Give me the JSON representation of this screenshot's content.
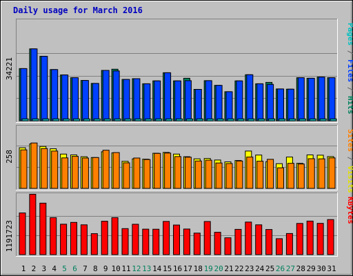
{
  "chart_data": {
    "type": "bar",
    "title": "Daily usage for March 2016",
    "categories": [
      "1",
      "2",
      "3",
      "4",
      "5",
      "6",
      "7",
      "8",
      "9",
      "10",
      "11",
      "12",
      "13",
      "14",
      "15",
      "16",
      "17",
      "18",
      "19",
      "20",
      "21",
      "22",
      "23",
      "24",
      "25",
      "26",
      "27",
      "28",
      "29",
      "30",
      "31"
    ],
    "weekend_days": [
      "5",
      "6",
      "12",
      "13",
      "19",
      "20",
      "26",
      "27"
    ],
    "panels": [
      {
        "id": "hits",
        "ytick_label": "34221",
        "ytick_value": 34221,
        "ylabel_parts": [
          {
            "text": "Pages",
            "color": "#00c0c0"
          },
          {
            "text": " / ",
            "color": "#606060"
          },
          {
            "text": "Files",
            "color": "#0040ff"
          },
          {
            "text": " / ",
            "color": "#606060"
          },
          {
            "text": "Hits",
            "color": "#00805c"
          }
        ],
        "series": [
          {
            "name": "Hits",
            "color": "#00805c",
            "values": [
              26400,
              36400,
              32600,
              25900,
              23200,
              21800,
              20400,
              18900,
              25500,
              26100,
              20900,
              21300,
              18700,
              20200,
              24300,
              20200,
              21500,
              15900,
              20300,
              17900,
              14700,
              20200,
              23300,
              18700,
              19400,
              16100,
              16000,
              21800,
              21500,
              22100,
              21800
            ]
          },
          {
            "name": "Files",
            "color": "#0040ff",
            "values": [
              26400,
              36400,
              32600,
              25900,
              23200,
              21800,
              20400,
              18900,
              25500,
              25200,
              20900,
              21300,
              18700,
              20200,
              24300,
              20200,
              20300,
              15900,
              20300,
              17900,
              14700,
              20200,
              23300,
              18700,
              18400,
              16100,
              16000,
              21800,
              21500,
              22100,
              21800
            ]
          },
          {
            "name": "Pages",
            "color": "#00c0c0",
            "values": [
              950,
              950,
              950,
              950,
              950,
              950,
              950,
              950,
              950,
              950,
              950,
              950,
              950,
              950,
              950,
              950,
              950,
              950,
              950,
              950,
              950,
              950,
              950,
              950,
              950,
              950,
              950,
              950,
              950,
              950,
              950
            ]
          }
        ]
      },
      {
        "id": "visits",
        "ytick_label": "258",
        "ytick_value": 258,
        "ylabel_parts": [
          {
            "text": "Sites",
            "color": "#ff8000"
          },
          {
            "text": " / ",
            "color": "#606060"
          },
          {
            "text": "Visits",
            "color": "#e0e000"
          }
        ],
        "series": [
          {
            "name": "Visits",
            "color": "#ffff00",
            "values": [
              245,
              268,
              253,
              239,
              207,
              202,
              191,
              186,
              221,
              214,
              163,
              178,
              176,
              212,
              217,
              207,
              191,
              178,
              180,
              171,
              160,
              168,
              225,
              201,
              161,
              149,
              189,
              151,
              202,
              200,
              192
            ]
          },
          {
            "name": "Sites",
            "color": "#ff8000",
            "values": [
              232,
              274,
              240,
              225,
              184,
              193,
              183,
              186,
              230,
              216,
              154,
              183,
              174,
              211,
              213,
              192,
              188,
              165,
              170,
              153,
              150,
              165,
              189,
              164,
              175,
              124,
              151,
              147,
              179,
              178,
              184
            ]
          }
        ]
      },
      {
        "id": "kbytes",
        "ytick_label": "1191723",
        "ytick_value": 1191723,
        "ylabel_parts": [
          {
            "text": "KBytes",
            "color": "#ff0000"
          }
        ],
        "series": [
          {
            "name": "KBytes",
            "color": "#ff0000",
            "values": [
              1285000,
              1862000,
              1588000,
              1140000,
              939000,
              993000,
              919000,
              646000,
              1030000,
              1140000,
              803000,
              937000,
              785000,
              783000,
              1024000,
              913000,
              789000,
              663000,
              1021000,
              690000,
              519000,
              778000,
              1004000,
              919000,
              774000,
              491000,
              651000,
              961000,
              1034000,
              963000,
              1080000
            ]
          }
        ]
      }
    ]
  }
}
